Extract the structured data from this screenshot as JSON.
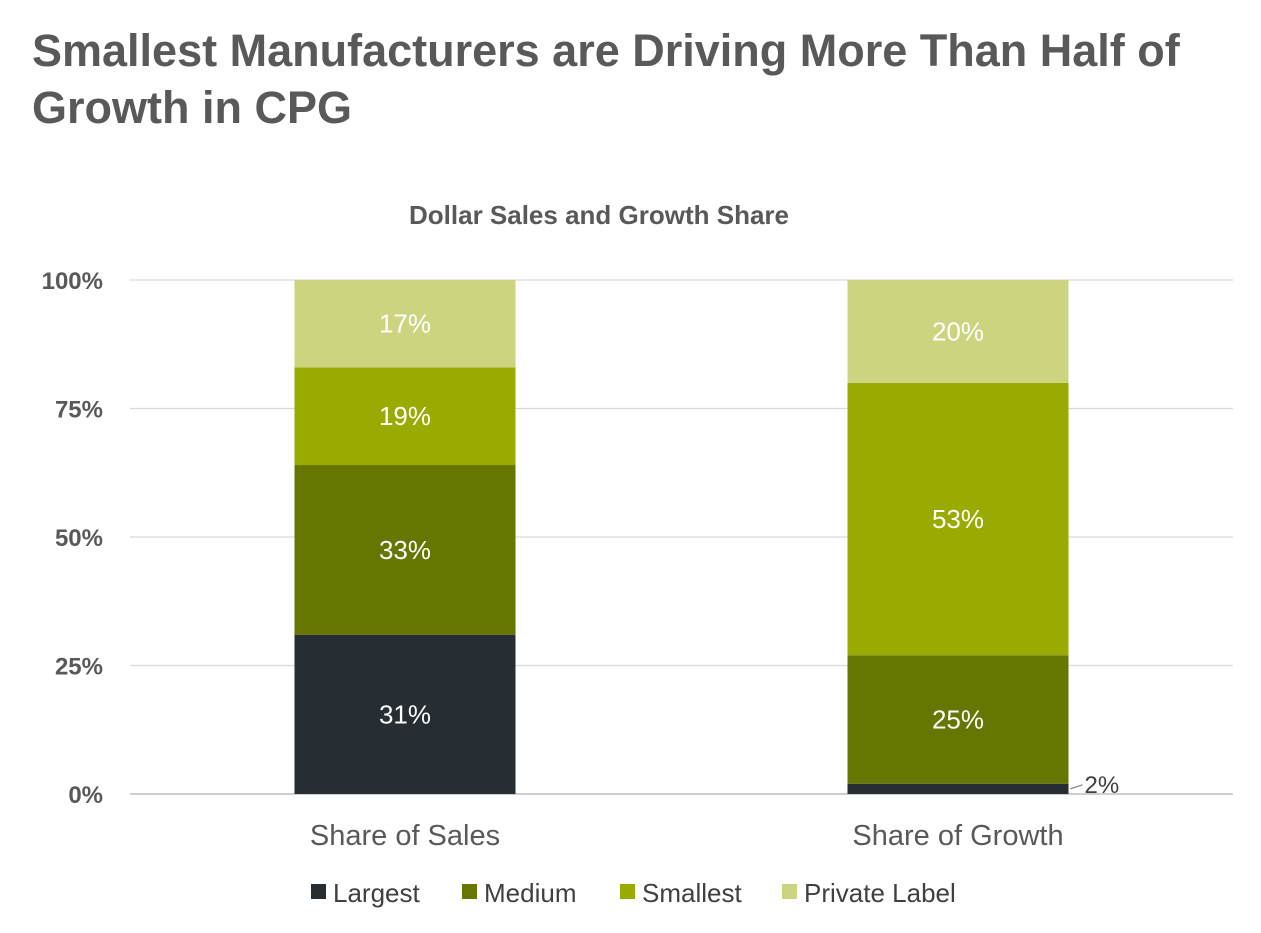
{
  "page": {
    "title": "Smallest Manufacturers are Driving More Than Half of Growth in CPG"
  },
  "chart_data": {
    "type": "bar",
    "stacked": true,
    "title": "Dollar Sales and Growth Share",
    "xlabel": "",
    "ylabel": "",
    "ylim": [
      0,
      100
    ],
    "yticks": [
      0,
      25,
      50,
      75,
      100
    ],
    "ytick_labels": [
      "0%",
      "25%",
      "50%",
      "75%",
      "100%"
    ],
    "categories": [
      "Share of Sales",
      "Share of Growth"
    ],
    "series": [
      {
        "name": "Largest",
        "values": [
          31,
          2
        ],
        "labels": [
          "31%",
          "2%"
        ],
        "color": "#262d33"
      },
      {
        "name": "Medium",
        "values": [
          33,
          25
        ],
        "labels": [
          "33%",
          "25%"
        ],
        "color": "#677600"
      },
      {
        "name": "Smallest",
        "values": [
          19,
          53
        ],
        "labels": [
          "19%",
          "53%"
        ],
        "color": "#99ab00"
      },
      {
        "name": "Private Label",
        "values": [
          17,
          20
        ],
        "labels": [
          "17%",
          "20%"
        ],
        "color": "#ccd480"
      }
    ],
    "grid": true,
    "legend_position": "bottom"
  }
}
